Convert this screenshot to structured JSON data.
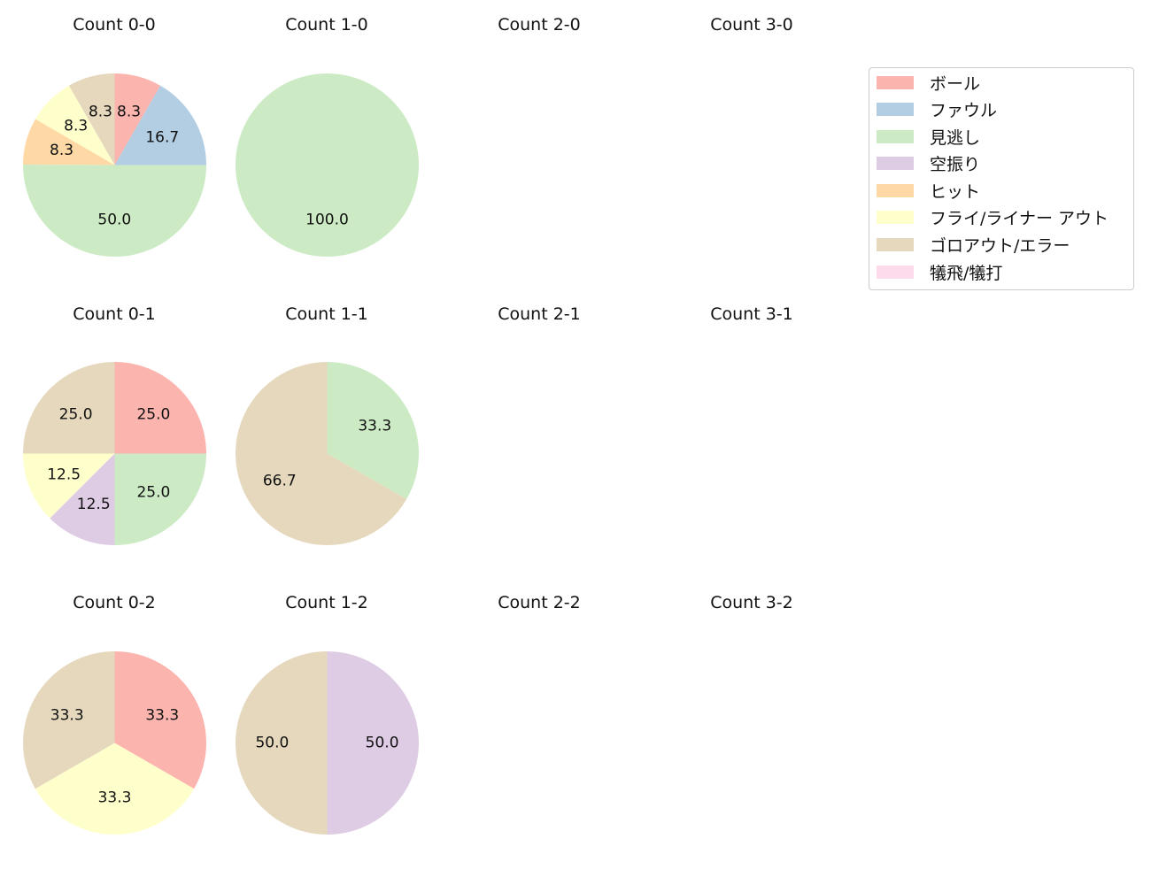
{
  "legend": {
    "items": [
      {
        "label": "ボール",
        "color": "#fbb4ae"
      },
      {
        "label": "ファウル",
        "color": "#b3cde3"
      },
      {
        "label": "見逃し",
        "color": "#ccebc5"
      },
      {
        "label": "空振り",
        "color": "#decbe4"
      },
      {
        "label": "ヒット",
        "color": "#fed9a6"
      },
      {
        "label": "フライ/ライナー アウト",
        "color": "#ffffcc"
      },
      {
        "label": "ゴロアウト/エラー",
        "color": "#e5d8bd"
      },
      {
        "label": "犠飛/犠打",
        "color": "#fddaec"
      }
    ]
  },
  "chart_data": [
    {
      "type": "pie",
      "title": "Count 0-0",
      "categories": [
        "ボール",
        "ファウル",
        "見逃し",
        "ヒット",
        "フライ/ライナー アウト",
        "ゴロアウト/エラー"
      ],
      "values": [
        8.3,
        16.7,
        50.0,
        8.3,
        8.3,
        8.3
      ]
    },
    {
      "type": "pie",
      "title": "Count 1-0",
      "categories": [
        "見逃し"
      ],
      "values": [
        100.0
      ]
    },
    {
      "type": "pie",
      "title": "Count 2-0",
      "categories": [],
      "values": []
    },
    {
      "type": "pie",
      "title": "Count 3-0",
      "categories": [],
      "values": []
    },
    {
      "type": "pie",
      "title": "Count 0-1",
      "categories": [
        "ボール",
        "見逃し",
        "空振り",
        "フライ/ライナー アウト",
        "ゴロアウト/エラー"
      ],
      "values": [
        25.0,
        25.0,
        12.5,
        12.5,
        25.0
      ]
    },
    {
      "type": "pie",
      "title": "Count 1-1",
      "categories": [
        "見逃し",
        "ゴロアウト/エラー"
      ],
      "values": [
        33.3,
        66.7
      ]
    },
    {
      "type": "pie",
      "title": "Count 2-1",
      "categories": [],
      "values": []
    },
    {
      "type": "pie",
      "title": "Count 3-1",
      "categories": [],
      "values": []
    },
    {
      "type": "pie",
      "title": "Count 0-2",
      "categories": [
        "ボール",
        "フライ/ライナー アウト",
        "ゴロアウト/エラー"
      ],
      "values": [
        33.3,
        33.3,
        33.3
      ]
    },
    {
      "type": "pie",
      "title": "Count 1-2",
      "categories": [
        "空振り",
        "ゴロアウト/エラー"
      ],
      "values": [
        50.0,
        50.0
      ]
    },
    {
      "type": "pie",
      "title": "Count 2-2",
      "categories": [],
      "values": []
    },
    {
      "type": "pie",
      "title": "Count 3-2",
      "categories": [],
      "values": []
    }
  ]
}
